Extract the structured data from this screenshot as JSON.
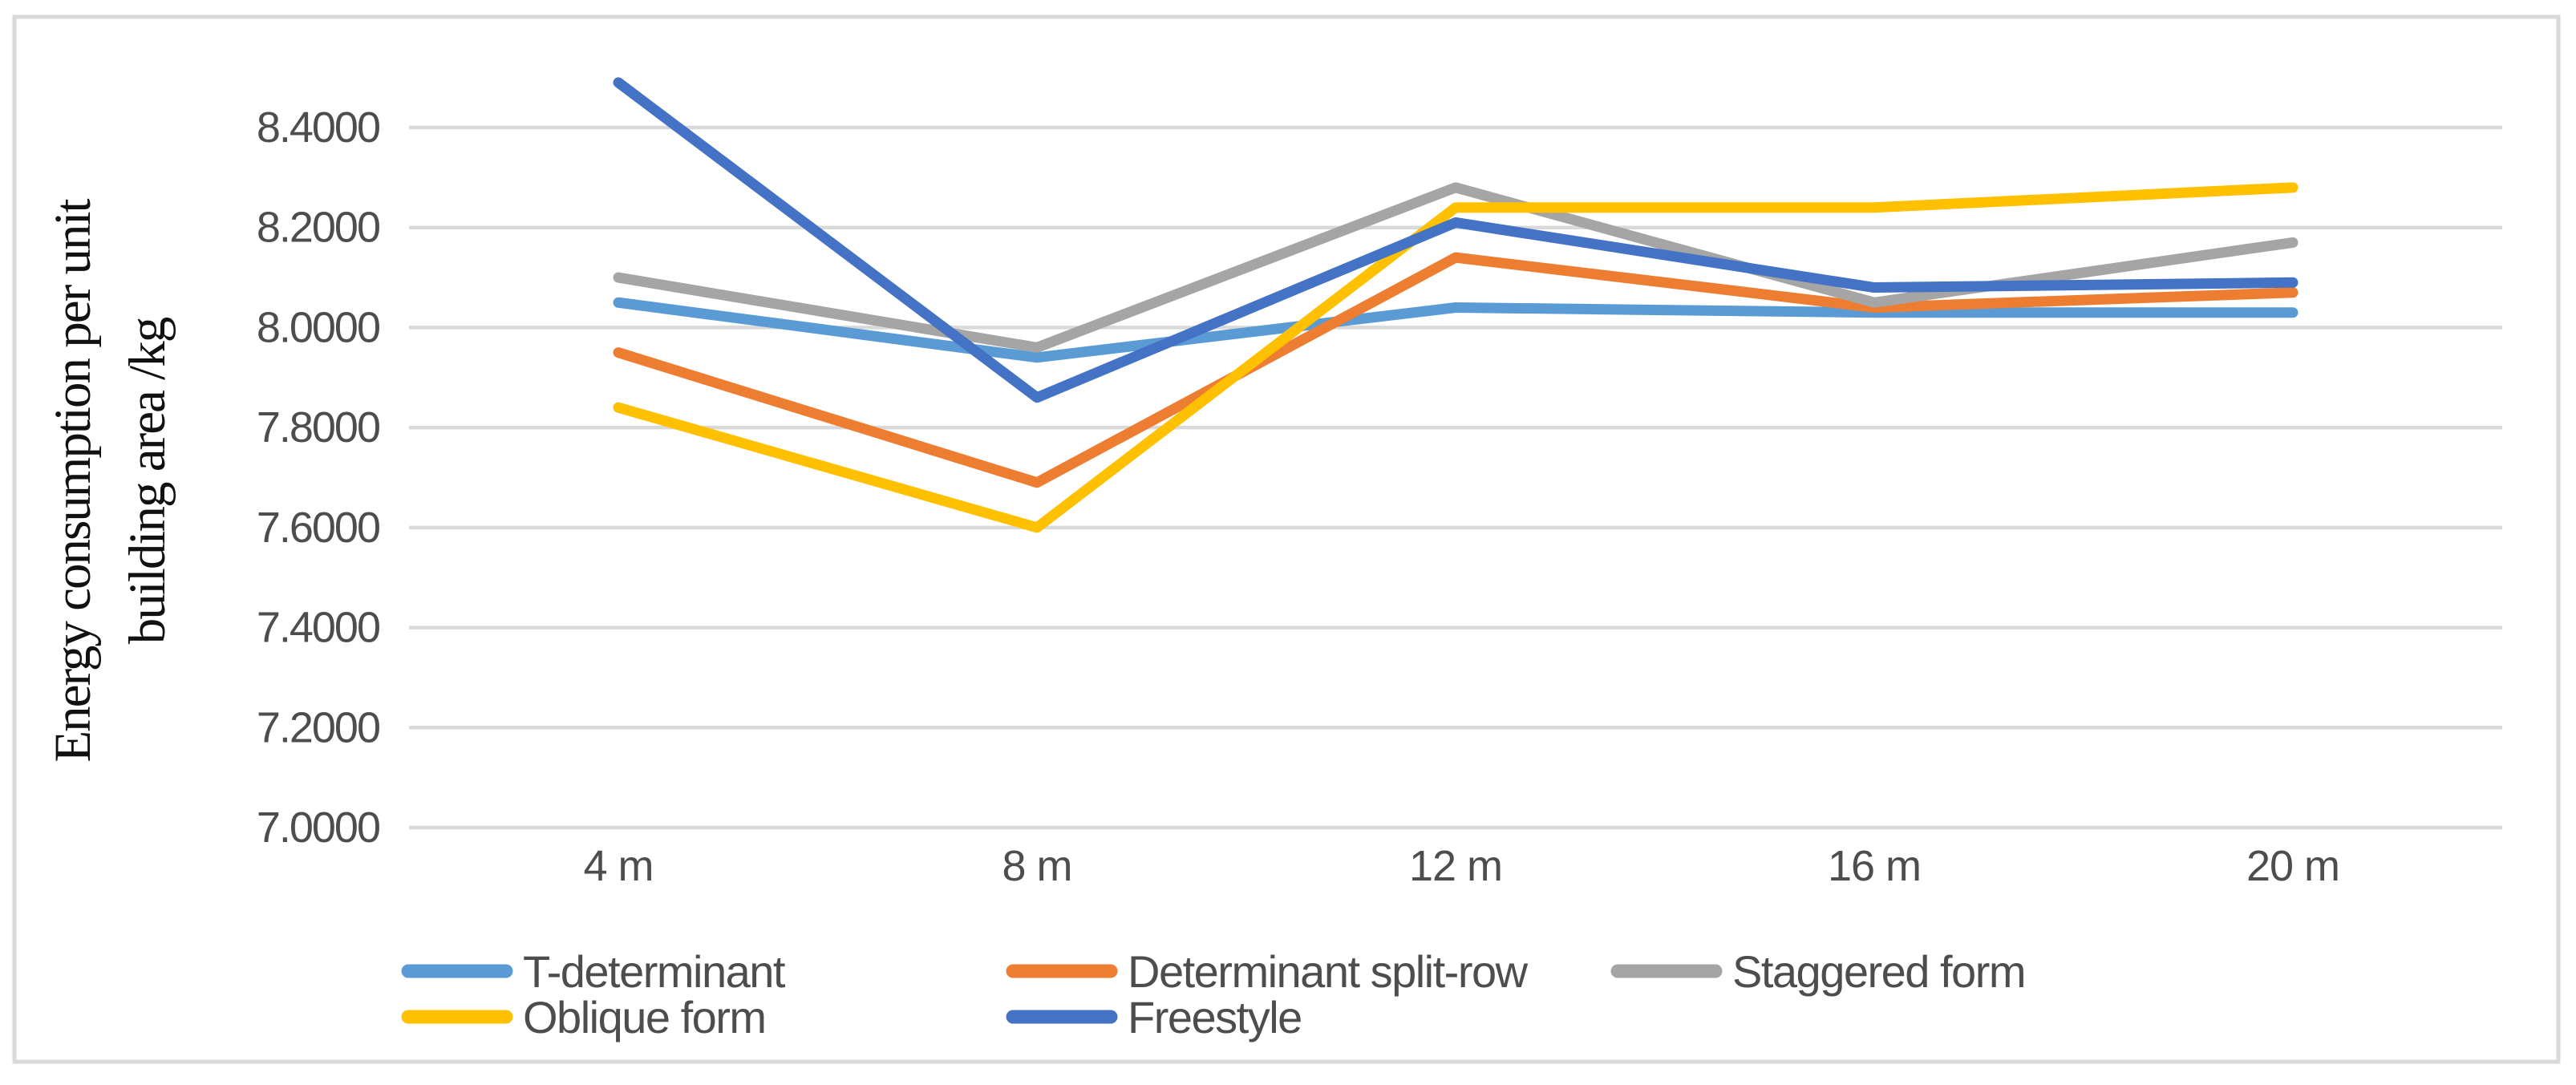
{
  "chart_data": {
    "type": "line",
    "title": "",
    "categories": [
      "4 m",
      "8 m",
      "12 m",
      "16 m",
      "20 m"
    ],
    "series": [
      {
        "name": "T-determinant",
        "color": "#5B9BD5",
        "values": [
          8.05,
          7.94,
          8.04,
          8.03,
          8.03
        ]
      },
      {
        "name": "Determinant split-row",
        "color": "#ED7D31",
        "values": [
          7.95,
          7.69,
          8.14,
          8.04,
          8.07
        ]
      },
      {
        "name": "Staggered form",
        "color": "#A5A5A5",
        "values": [
          8.1,
          7.96,
          8.28,
          8.05,
          8.17
        ]
      },
      {
        "name": "Oblique form",
        "color": "#FFC000",
        "values": [
          7.84,
          7.6,
          8.24,
          8.24,
          8.28
        ]
      },
      {
        "name": "Freestyle",
        "color": "#4472C4",
        "values": [
          8.49,
          7.86,
          8.21,
          8.08,
          8.09
        ]
      }
    ],
    "ylabel_lines": [
      "Energy consumption per unit",
      "building area /kg"
    ],
    "ylabel": "Energy consumption per unit building area /kg",
    "xlabel": "",
    "y_ticks": [
      "7.0000",
      "7.2000",
      "7.4000",
      "7.6000",
      "7.8000",
      "8.0000",
      "8.2000",
      "8.4000"
    ],
    "ylim": [
      7.0,
      8.5
    ],
    "y_major_unit": 0.2,
    "grid": true,
    "legend_position": "bottom",
    "legend_rows": [
      [
        "T-determinant",
        "Determinant split-row",
        "Staggered form"
      ],
      [
        "Oblique form",
        "Freestyle"
      ]
    ]
  },
  "styles": {
    "grid_color": "#D9D9D9",
    "border_color": "#D9D9D9",
    "tick_text_color": "#4D4D4D",
    "legend_text_color": "#4D4D4D",
    "axis_title_color": "#111111",
    "background": "#FFFFFF"
  }
}
